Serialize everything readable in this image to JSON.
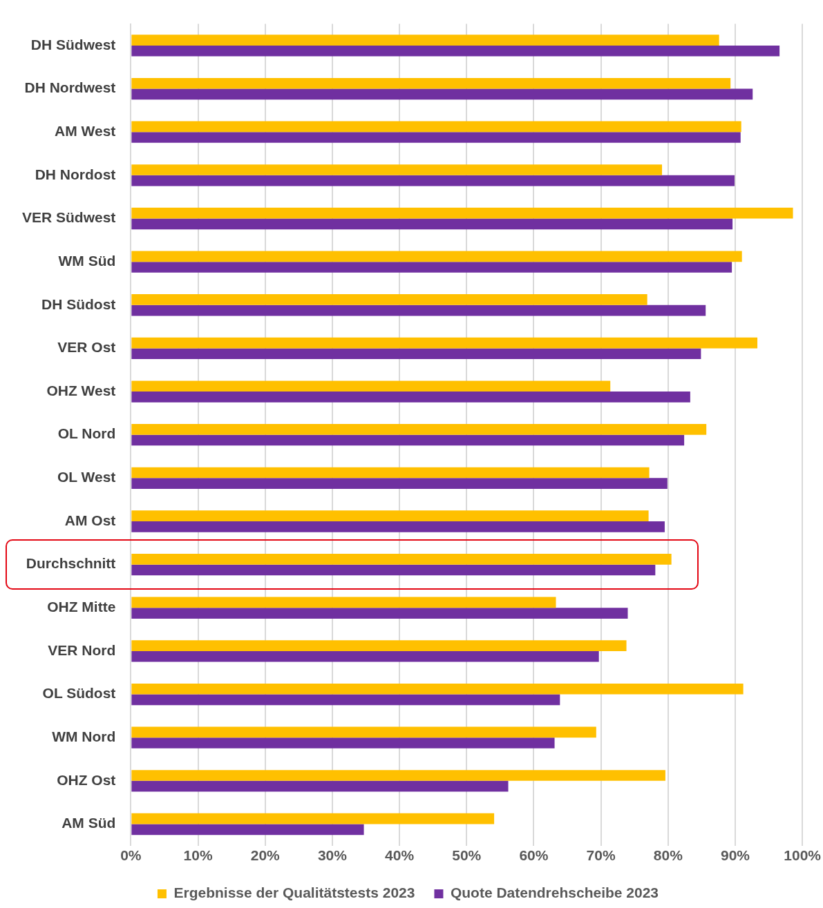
{
  "chart_data": {
    "type": "bar",
    "orientation": "horizontal",
    "categories": [
      "DH Südwest",
      "DH Nordwest",
      "AM West",
      "DH Nordost",
      "VER Südwest",
      "WM Süd",
      "DH Südost",
      "VER Ost",
      "OHZ West",
      "OL Nord",
      "OL West",
      "AM Ost",
      "Durchschnitt",
      "OHZ Mitte",
      "VER Nord",
      "OL Südost",
      "WM Nord",
      "OHZ Ost",
      "AM Süd"
    ],
    "series": [
      {
        "name": "Ergebnisse der Qualitätstests 2023",
        "color": "#ffc000",
        "values": [
          87.6,
          89.3,
          90.9,
          79.1,
          98.6,
          91.0,
          76.9,
          93.3,
          71.4,
          85.7,
          77.2,
          77.1,
          80.5,
          63.3,
          73.8,
          91.2,
          69.3,
          79.6,
          54.1
        ]
      },
      {
        "name": "Quote Datendrehscheibe 2023",
        "color": "#7030a0",
        "values": [
          96.6,
          92.6,
          90.8,
          89.9,
          89.6,
          89.5,
          85.6,
          84.9,
          83.3,
          82.4,
          79.9,
          79.5,
          78.1,
          74.0,
          69.7,
          63.9,
          63.1,
          56.2,
          34.7
        ]
      }
    ],
    "xlim": [
      0,
      100
    ],
    "xticks": [
      {
        "value": 0,
        "label": "0%"
      },
      {
        "value": 10,
        "label": "10%"
      },
      {
        "value": 20,
        "label": "20%"
      },
      {
        "value": 30,
        "label": "30%"
      },
      {
        "value": 40,
        "label": "40%"
      },
      {
        "value": 50,
        "label": "50%"
      },
      {
        "value": 60,
        "label": "60%"
      },
      {
        "value": 70,
        "label": "70%"
      },
      {
        "value": 80,
        "label": "80%"
      },
      {
        "value": 90,
        "label": "90%"
      },
      {
        "value": 100,
        "label": "100%"
      }
    ],
    "grid": "x",
    "legend": "bottom"
  }
}
